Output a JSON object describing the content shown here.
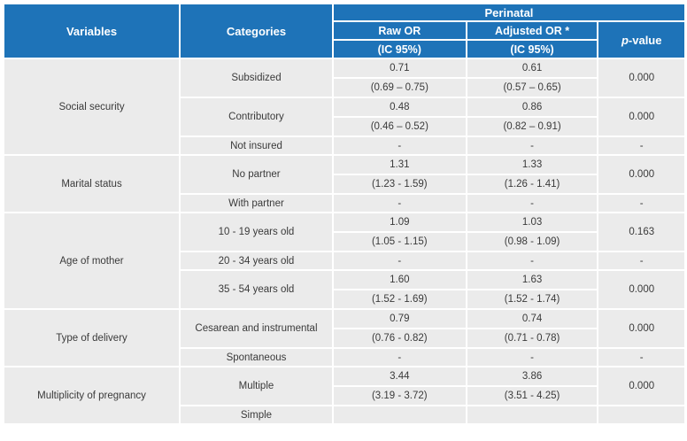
{
  "header": {
    "variables": "Variables",
    "categories": "Categories",
    "group": "Perinatal",
    "raw_or": "Raw OR",
    "adjusted_or": "Adjusted OR *",
    "ci": "(IC 95%)",
    "p_prefix": "p",
    "p_suffix": "-value"
  },
  "rows": [
    {
      "variable": "Social security",
      "categories": [
        {
          "name": "Subsidized",
          "raw": "0.71",
          "raw_ci": "(0.69 – 0.75)",
          "adj": "0.61",
          "adj_ci": "(0.57 – 0.65)",
          "p": "0.000"
        },
        {
          "name": "Contributory",
          "raw": "0.48",
          "raw_ci": "(0.46 – 0.52)",
          "adj": "0.86",
          "adj_ci": "(0.82 – 0.91)",
          "p": "0.000"
        },
        {
          "name": "Not insured",
          "raw": "-",
          "adj": "-",
          "p": "-"
        }
      ]
    },
    {
      "variable": "Marital status",
      "categories": [
        {
          "name": "No partner",
          "raw": "1.31",
          "raw_ci": "(1.23 - 1.59)",
          "adj": "1.33",
          "adj_ci": "(1.26 - 1.41)",
          "p": "0.000"
        },
        {
          "name": "With partner",
          "raw": "-",
          "adj": "-",
          "p": "-"
        }
      ]
    },
    {
      "variable": "Age of mother",
      "categories": [
        {
          "name": "10 - 19 years old",
          "raw": "1.09",
          "raw_ci": "(1.05 - 1.15)",
          "adj": "1.03",
          "adj_ci": "(0.98 - 1.09)",
          "p": "0.163"
        },
        {
          "name": "20 - 34 years old",
          "raw": "-",
          "adj": "-",
          "p": "-"
        },
        {
          "name": "35 - 54 years old",
          "raw": "1.60",
          "raw_ci": "(1.52 - 1.69)",
          "adj": "1.63",
          "adj_ci": "(1.52 - 1.74)",
          "p": "0.000"
        }
      ]
    },
    {
      "variable": "Type of delivery",
      "categories": [
        {
          "name": "Cesarean and instrumental",
          "raw": "0.79",
          "raw_ci": "(0.76 - 0.82)",
          "adj": "0.74",
          "adj_ci": "(0.71 - 0.78)",
          "p": "0.000"
        },
        {
          "name": "Spontaneous",
          "raw": "-",
          "adj": "-",
          "p": "-"
        }
      ]
    },
    {
      "variable": "Multiplicity of pregnancy",
      "categories": [
        {
          "name": "Multiple",
          "raw": "3.44",
          "raw_ci": "(3.19 - 3.72)",
          "adj": "3.86",
          "adj_ci": "(3.51 - 4.25)",
          "p": "0.000"
        },
        {
          "name": "Simple",
          "raw": "",
          "adj": "",
          "p": ""
        }
      ]
    }
  ]
}
